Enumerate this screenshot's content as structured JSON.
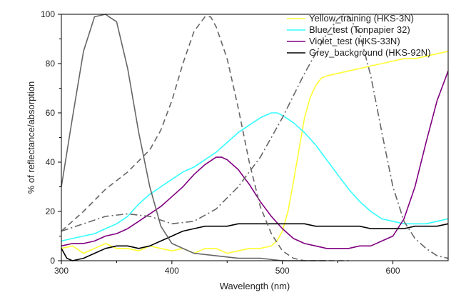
{
  "chart_data": {
    "type": "line",
    "xlabel": "Wavelength (nm)",
    "ylabel": "% of reflectance/absorption",
    "xlim": [
      300,
      650
    ],
    "ylim": [
      0,
      100
    ],
    "x_ticks": [
      300,
      400,
      500,
      600
    ],
    "y_ticks": [
      0,
      20,
      40,
      60,
      80,
      100
    ],
    "grid": false,
    "legend_position": "top-right",
    "series": [
      {
        "name": "Yellow_training (HKS-3N)",
        "color": "#ffff33",
        "style": "solid",
        "x": [
          300,
          310,
          320,
          330,
          340,
          350,
          360,
          370,
          380,
          390,
          400,
          410,
          420,
          430,
          440,
          450,
          460,
          470,
          480,
          490,
          495,
          500,
          505,
          510,
          515,
          520,
          525,
          530,
          535,
          540,
          550,
          560,
          570,
          580,
          590,
          600,
          610,
          620,
          630,
          640,
          650
        ],
        "y": [
          5,
          6,
          3,
          5,
          7,
          5,
          5,
          4,
          6,
          5,
          4,
          5,
          3,
          5,
          5,
          3,
          4,
          5,
          5,
          6,
          8,
          12,
          20,
          32,
          45,
          58,
          66,
          71,
          74,
          75,
          76,
          77,
          78,
          79,
          80,
          81,
          82,
          82,
          83,
          84,
          85
        ]
      },
      {
        "name": "Blue_test (Tonpapier 32)",
        "color": "#33ffff",
        "style": "solid",
        "x": [
          300,
          310,
          320,
          330,
          340,
          350,
          360,
          370,
          380,
          390,
          400,
          410,
          420,
          430,
          440,
          450,
          460,
          470,
          480,
          490,
          495,
          500,
          510,
          520,
          530,
          540,
          550,
          560,
          570,
          580,
          590,
          600,
          610,
          620,
          630,
          640,
          650
        ],
        "y": [
          8,
          9,
          10,
          11,
          13,
          15,
          18,
          23,
          27,
          30,
          33,
          36,
          38,
          41,
          44,
          48,
          52,
          55,
          58,
          60,
          60,
          59,
          56,
          52,
          47,
          41,
          35,
          29,
          24,
          20,
          17,
          16,
          15,
          15,
          15,
          16,
          17
        ]
      },
      {
        "name": "Violet_test (HKS-33N)",
        "color": "#800080",
        "style": "solid",
        "x": [
          300,
          310,
          320,
          330,
          340,
          350,
          360,
          370,
          380,
          390,
          400,
          410,
          420,
          430,
          440,
          445,
          450,
          460,
          470,
          480,
          490,
          500,
          510,
          520,
          530,
          540,
          550,
          560,
          570,
          580,
          590,
          600,
          610,
          620,
          630,
          640,
          650
        ],
        "y": [
          6,
          7,
          7,
          8,
          10,
          11,
          13,
          16,
          19,
          22,
          26,
          30,
          35,
          39,
          42,
          42,
          41,
          37,
          31,
          24,
          18,
          13,
          9,
          7,
          6,
          5,
          5,
          5,
          6,
          6,
          8,
          10,
          17,
          30,
          48,
          65,
          77
        ]
      },
      {
        "name": "Grey_background (HKS-92N)",
        "color": "#000000",
        "style": "solid",
        "x": [
          300,
          305,
          310,
          320,
          330,
          340,
          350,
          360,
          370,
          380,
          390,
          400,
          410,
          420,
          430,
          440,
          450,
          460,
          470,
          480,
          490,
          500,
          510,
          520,
          530,
          540,
          550,
          560,
          570,
          580,
          590,
          600,
          610,
          620,
          630,
          640,
          650
        ],
        "y": [
          5,
          1,
          0,
          1,
          3,
          5,
          6,
          6,
          5,
          6,
          8,
          10,
          12,
          13,
          14,
          14,
          14,
          15,
          15,
          15,
          15,
          15,
          15,
          15,
          14,
          14,
          14,
          14,
          14,
          13,
          13,
          13,
          13,
          14,
          14,
          14,
          15
        ]
      },
      {
        "color": "#666666",
        "style": "solid",
        "x": [
          300,
          310,
          320,
          330,
          340,
          343,
          350,
          360,
          370,
          380,
          390,
          400,
          420,
          440,
          460,
          480,
          500,
          520,
          540
        ],
        "y": [
          30,
          58,
          85,
          99,
          100,
          99,
          97,
          78,
          52,
          30,
          14,
          7,
          3,
          2,
          1,
          1,
          0,
          0,
          0
        ]
      },
      {
        "color": "#666666",
        "style": "dashed",
        "x": [
          300,
          320,
          340,
          360,
          380,
          390,
          400,
          410,
          420,
          430,
          435,
          440,
          450,
          460,
          470,
          480,
          490,
          500,
          510,
          520,
          540,
          560
        ],
        "y": [
          12,
          20,
          29,
          36,
          45,
          53,
          65,
          80,
          93,
          99,
          99,
          95,
          82,
          62,
          40,
          22,
          11,
          4,
          1,
          0,
          0,
          0
        ]
      },
      {
        "color": "#666666",
        "style": "dashdot",
        "x": [
          300,
          320,
          340,
          360,
          380,
          400,
          420,
          440,
          460,
          480,
          500,
          520,
          540,
          550,
          555,
          560,
          570,
          580,
          590,
          600,
          610,
          620,
          630,
          640,
          650
        ],
        "y": [
          12,
          15,
          18,
          19,
          18,
          15,
          16,
          21,
          30,
          42,
          58,
          76,
          92,
          98,
          100,
          99,
          92,
          75,
          52,
          30,
          16,
          9,
          5,
          2,
          1
        ]
      }
    ]
  }
}
